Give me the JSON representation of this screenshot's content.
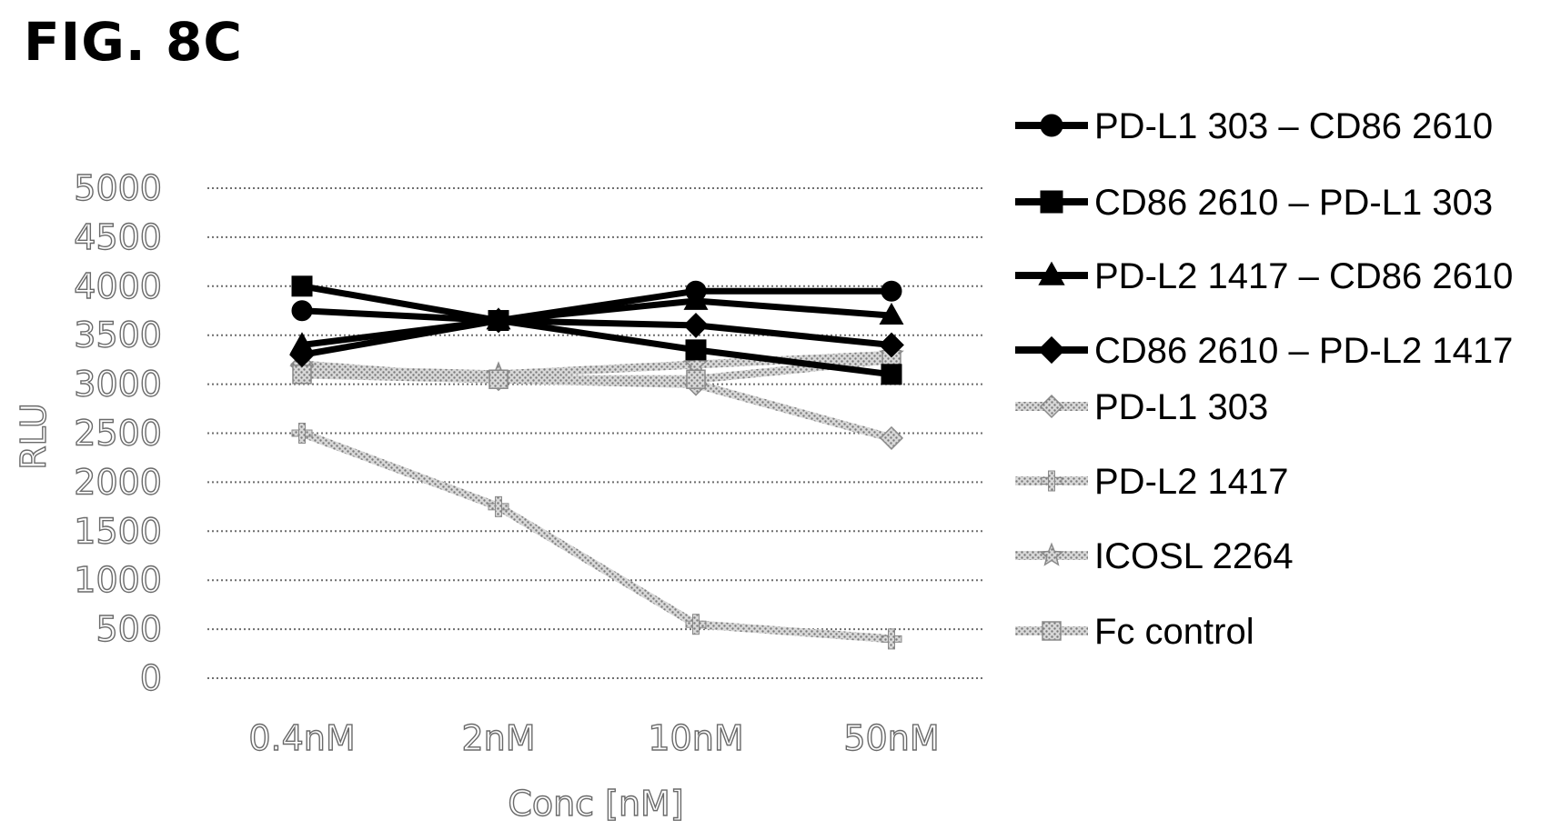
{
  "figure_label": "FIG. 8C",
  "colors": {
    "dark": "#000000",
    "light": "#b3b3b3",
    "grid": "#6e6e6e"
  },
  "chart_data": {
    "type": "line",
    "title": "",
    "xlabel": "Conc [nM]",
    "ylabel": "RLU",
    "categories": [
      "0.4nM",
      "2nM",
      "10nM",
      "50nM"
    ],
    "ylim": [
      0,
      5000
    ],
    "yticks": [
      0,
      500,
      1000,
      1500,
      2000,
      2500,
      3000,
      3500,
      4000,
      4500,
      5000
    ],
    "grid": true,
    "legend_position": "right",
    "series": [
      {
        "name": "PD-L1 303 – CD86 2610",
        "values": [
          3750,
          3650,
          3950,
          3950
        ],
        "marker": "circle",
        "style": "dark"
      },
      {
        "name": "CD86 2610 – PD-L1 303",
        "values": [
          4000,
          3650,
          3350,
          3100
        ],
        "marker": "square",
        "style": "dark"
      },
      {
        "name": "PD-L2 1417 – CD86 2610",
        "values": [
          3400,
          3650,
          3850,
          3700
        ],
        "marker": "triangle",
        "style": "dark"
      },
      {
        "name": "CD86 2610 – PD-L2 1417",
        "values": [
          3300,
          3650,
          3600,
          3400
        ],
        "marker": "diamond",
        "style": "dark"
      },
      {
        "name": "PD-L1 303",
        "values": [
          3200,
          3050,
          3000,
          2450
        ],
        "marker": "diamond",
        "style": "light"
      },
      {
        "name": "PD-L2 1417",
        "values": [
          2500,
          1750,
          550,
          400
        ],
        "marker": "cross",
        "style": "light"
      },
      {
        "name": "ICOSL 2264",
        "values": [
          3150,
          3100,
          3200,
          3300
        ],
        "marker": "star",
        "style": "light"
      },
      {
        "name": "Fc control",
        "values": [
          3100,
          3050,
          3050,
          3250
        ],
        "marker": "square",
        "style": "light"
      }
    ]
  }
}
